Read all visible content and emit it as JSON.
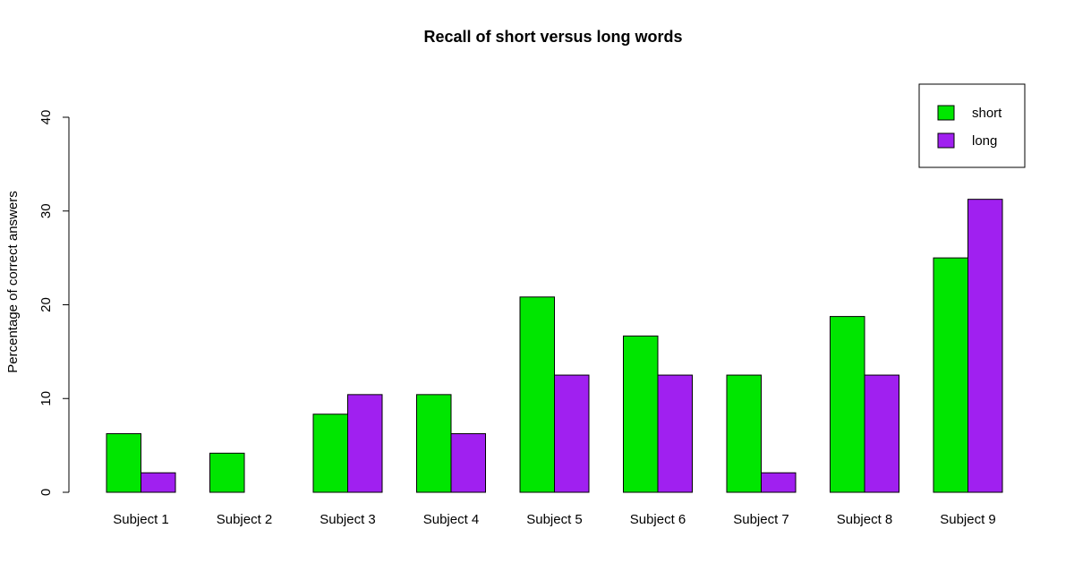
{
  "chart_data": {
    "type": "bar",
    "title": "Recall of short versus long words",
    "xlabel": "",
    "ylabel": "Percentage of correct answers",
    "ylim": [
      0,
      40
    ],
    "yticks": [
      "0",
      "10",
      "20",
      "30",
      "40"
    ],
    "grid": false,
    "legend_position": "top-right",
    "categories": [
      "Subject 1",
      "Subject 2",
      "Subject 3",
      "Subject 4",
      "Subject 5",
      "Subject 6",
      "Subject 7",
      "Subject 8",
      "Subject 9"
    ],
    "series": [
      {
        "name": "short",
        "color": "#00e600",
        "values": [
          6.25,
          4.17,
          8.33,
          10.42,
          20.83,
          16.67,
          12.5,
          18.75,
          25.0
        ]
      },
      {
        "name": "long",
        "color": "#a020f0",
        "values": [
          2.08,
          0.0,
          10.42,
          6.25,
          12.5,
          12.5,
          2.08,
          12.5,
          31.25
        ]
      }
    ]
  }
}
